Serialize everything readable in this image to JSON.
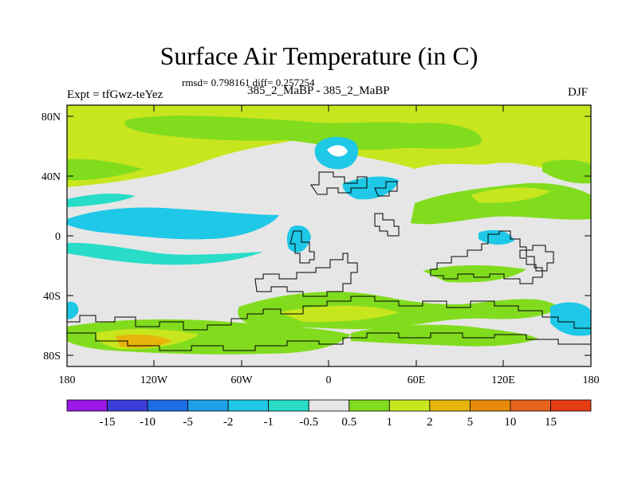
{
  "title": "Surface Air Temperature (in C)",
  "stats": "rmsd= 0.798161 diff= 0.257254",
  "experiment": "Expt = tfGwz-teYez",
  "subtitle": "385_2_MaBP - 385_2_MaBP",
  "season": "DJF",
  "lat_labels": [
    "80N",
    "40N",
    "0",
    "40S",
    "80S"
  ],
  "lon_labels": [
    "180",
    "120W",
    "60W",
    "0",
    "60E",
    "120E",
    "180"
  ],
  "colorbar": {
    "labels": [
      "-15",
      "-10",
      "-5",
      "-2",
      "-1",
      "-0.5",
      "0.5",
      "1",
      "2",
      "5",
      "10",
      "15"
    ],
    "colors": [
      "#9a19e6",
      "#3c3cd8",
      "#1e6ee6",
      "#1ea0e6",
      "#1ec8e6",
      "#28dcc8",
      "#e6e6e6",
      "#82dc1e",
      "#c8e61e",
      "#e6b40a",
      "#e68c0a",
      "#e6641e",
      "#e63c14"
    ]
  },
  "colors": {
    "warm_1": "#c8e61e",
    "warm_05": "#82dc1e",
    "cool_05": "#28dcc8",
    "cool_1": "#1ec8e6",
    "neutral": "#e6e6e6",
    "warm_2": "#e6b40a"
  }
}
